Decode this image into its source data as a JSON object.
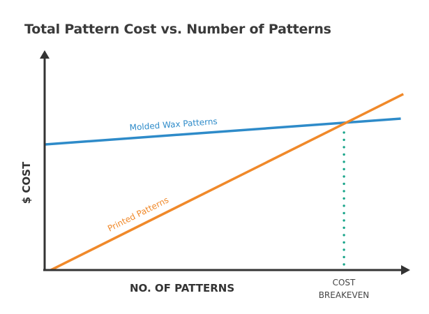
{
  "chart_data": {
    "type": "line",
    "title": "Total Pattern Cost vs. Number of Patterns",
    "xlabel": "NO. OF PATTERNS",
    "ylabel": "$ COST",
    "xlim": [
      0,
      100
    ],
    "ylim": [
      0,
      100
    ],
    "grid": false,
    "series": [
      {
        "name": "Molded Wax Patterns",
        "color": "#2e8bc9",
        "x": [
          0,
          98
        ],
        "y": [
          57.3,
          69.1
        ]
      },
      {
        "name": "Printed Patterns",
        "color": "#f0892a",
        "x": [
          1.9,
          98.7
        ],
        "y": [
          0,
          80.3
        ]
      }
    ],
    "annotations": [
      {
        "type": "vline",
        "x": 82.4,
        "label": [
          "COST",
          "BREAKEVEN"
        ],
        "color": "#1aa58a",
        "style": "dotted"
      }
    ],
    "axis_color": "#333333"
  }
}
